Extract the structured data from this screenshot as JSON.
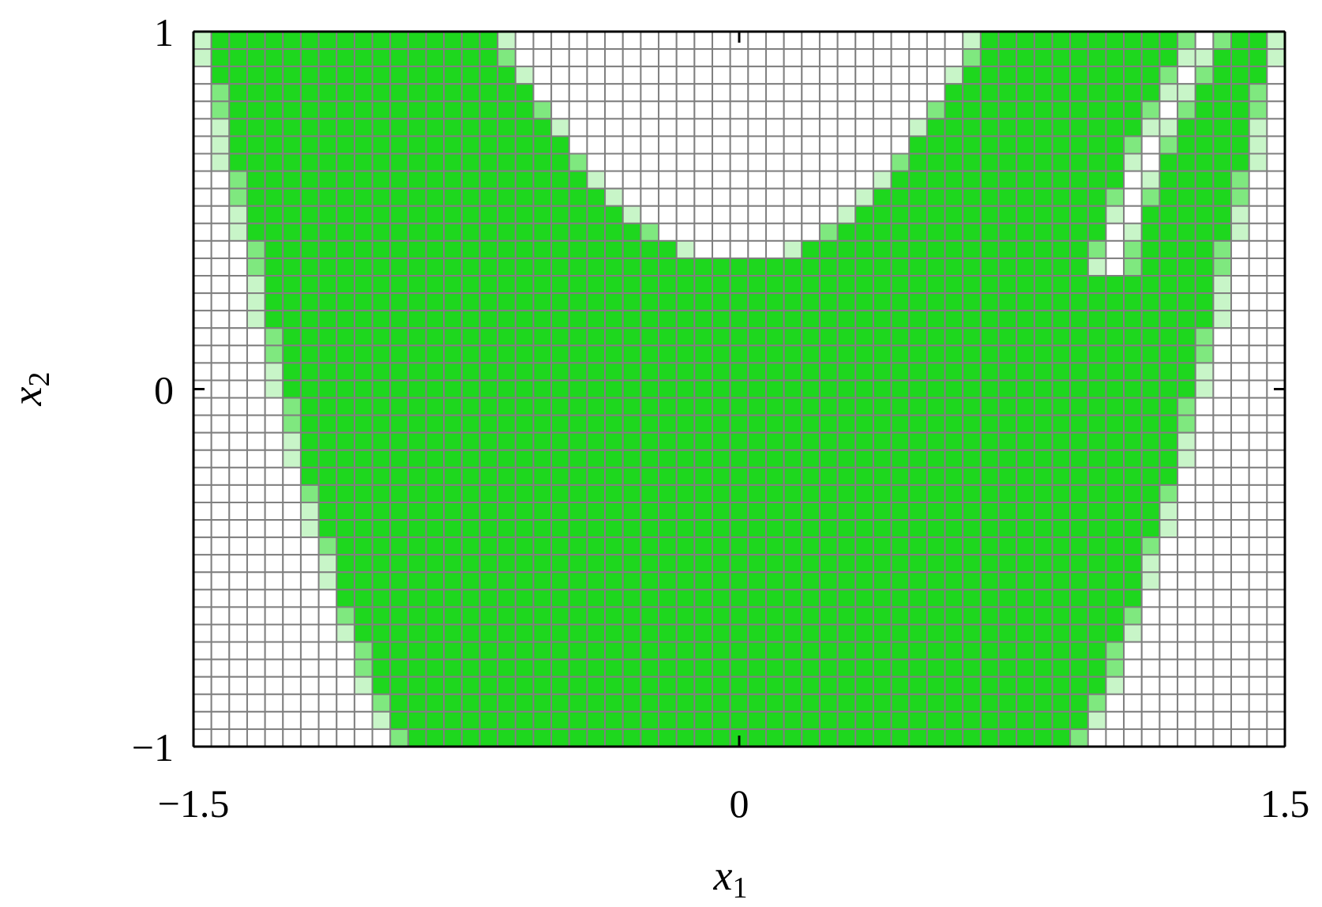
{
  "chart_data": {
    "type": "heatmap",
    "title": "",
    "xlabel": "x",
    "xlabel_subscript": "1",
    "ylabel": "x",
    "ylabel_subscript": "2",
    "xlim": [
      -1.5,
      1.5
    ],
    "ylim": [
      -1,
      1
    ],
    "x_ticks": [
      {
        "value": -1.5,
        "label": "−1.5"
      },
      {
        "value": 0,
        "label": "0"
      },
      {
        "value": 1.5,
        "label": "1.5"
      }
    ],
    "y_ticks": [
      {
        "value": -1,
        "label": "−1"
      },
      {
        "value": 0,
        "label": "0"
      },
      {
        "value": 1,
        "label": "1"
      }
    ],
    "grid": {
      "nx": 61,
      "ny": 41
    },
    "region_boundaries": {
      "description_free": true,
      "lower_half_width_at_y": [
        {
          "y": -1.0,
          "half_width": 0.93
        },
        {
          "y": -0.8,
          "half_width": 1.02
        },
        {
          "y": -0.6,
          "half_width": 1.09
        },
        {
          "y": -0.4,
          "half_width": 1.15
        },
        {
          "y": -0.2,
          "half_width": 1.21
        },
        {
          "y": 0.0,
          "half_width": 1.25
        },
        {
          "y": 0.2,
          "half_width": 1.3
        },
        {
          "y": 0.4,
          "half_width": 1.34
        },
        {
          "y": 0.6,
          "half_width": 1.39
        },
        {
          "y": 0.8,
          "half_width": 1.43
        },
        {
          "y": 1.0,
          "half_width": 1.47
        }
      ],
      "top_hole_bottom_y": 0.35,
      "top_hole_half_width_at_top": 0.67,
      "right_gap_center_at_y": [
        {
          "y": 0.35,
          "x": 1.02
        },
        {
          "y": 0.7,
          "x": 1.14
        },
        {
          "y": 1.0,
          "x": 1.29
        }
      ],
      "right_gap_half_width": 0.05
    },
    "colors": {
      "filled": "#1ed71e",
      "partial": "#7fe87f",
      "light": "#c8f5c8",
      "empty": "#ffffff",
      "grid_line": "#808080",
      "axis": "#000000"
    }
  }
}
